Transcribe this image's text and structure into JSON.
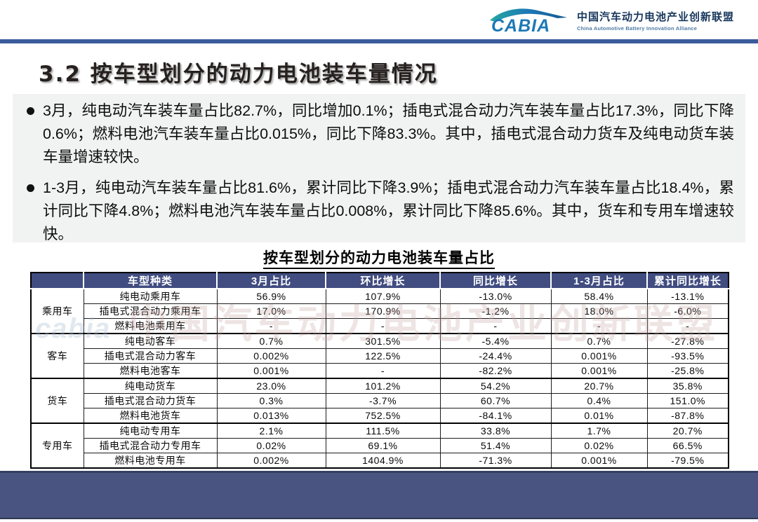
{
  "header": {
    "logo_text": "CABIA",
    "org_name_cn": "中国汽车动力电池产业创新联盟",
    "org_name_en": "China Automotive Battery Innovation Alliance"
  },
  "title": "3.2 按车型划分的动力电池装车量情况",
  "bullets": [
    "3月，纯电动汽车装车量占比82.7%，同比增加0.1%；插电式混合动力汽车装车量占比17.3%，同比下降0.6%；燃料电池汽车装车量占比0.015%，同比下降83.3%。其中，插电式混合动力货车及纯电动货车装车量增速较快。",
    "1-3月，纯电动汽车装车量占比81.6%，累计同比下降3.9%；插电式混合动力汽车装车量占比18.4%，累计同比下降4.8%；燃料电池汽车装车量占比0.008%，累计同比下降85.6%。其中，货车和专用车增速较快。"
  ],
  "table": {
    "title": "按车型划分的动力电池装车量占比",
    "corner_label": "",
    "columns": [
      "车型种类",
      "3月占比",
      "环比增长",
      "同比增长",
      "1-3月占比",
      "累计同比增长"
    ],
    "groups": [
      {
        "name": "乘用车",
        "rows": [
          {
            "type": "纯电动乘用车",
            "values": [
              "56.9%",
              "107.9%",
              "-13.0%",
              "58.4%",
              "-13.1%"
            ]
          },
          {
            "type": "插电式混合动力乘用车",
            "values": [
              "17.0%",
              "170.9%",
              "-1.2%",
              "18.0%",
              "-6.0%"
            ]
          },
          {
            "type": "燃料电池乘用车",
            "values": [
              "-",
              "-",
              "-",
              "-",
              "-"
            ]
          }
        ]
      },
      {
        "name": "客车",
        "rows": [
          {
            "type": "纯电动客车",
            "values": [
              "0.7%",
              "301.5%",
              "-5.4%",
              "0.7%",
              "-27.8%"
            ]
          },
          {
            "type": "插电式混合动力客车",
            "values": [
              "0.002%",
              "122.5%",
              "-24.4%",
              "0.001%",
              "-93.5%"
            ]
          },
          {
            "type": "燃料电池客车",
            "values": [
              "0.001%",
              "-",
              "-82.2%",
              "0.001%",
              "-25.8%"
            ]
          }
        ]
      },
      {
        "name": "货车",
        "rows": [
          {
            "type": "纯电动货车",
            "values": [
              "23.0%",
              "101.2%",
              "54.2%",
              "20.7%",
              "35.8%"
            ]
          },
          {
            "type": "插电式混合动力货车",
            "values": [
              "0.3%",
              "-3.7%",
              "60.7%",
              "0.4%",
              "151.0%"
            ]
          },
          {
            "type": "燃料电池货车",
            "values": [
              "0.013%",
              "752.5%",
              "-84.1%",
              "0.01%",
              "-87.8%"
            ]
          }
        ]
      },
      {
        "name": "专用车",
        "rows": [
          {
            "type": "纯电动专用车",
            "values": [
              "2.1%",
              "111.5%",
              "33.8%",
              "1.7%",
              "20.7%"
            ]
          },
          {
            "type": "插电式混合动力专用车",
            "values": [
              "0.02%",
              "69.1%",
              "51.4%",
              "0.02%",
              "66.5%"
            ]
          },
          {
            "type": "燃料电池专用车",
            "values": [
              "0.002%",
              "1404.9%",
              "-71.3%",
              "0.001%",
              "-79.5%"
            ]
          }
        ]
      }
    ]
  },
  "watermark": {
    "logo": "cabia",
    "text": "中国汽车动力电池产业创新联盟"
  },
  "colors": {
    "top_rule": "#3c5b9d",
    "table_header_bg": "#414d80",
    "footer_bar": "#4a5480",
    "bullet_block_bg": "#f1f3f2",
    "logo_blue": "#1c78b6",
    "logo_teal": "#25a8a0"
  }
}
